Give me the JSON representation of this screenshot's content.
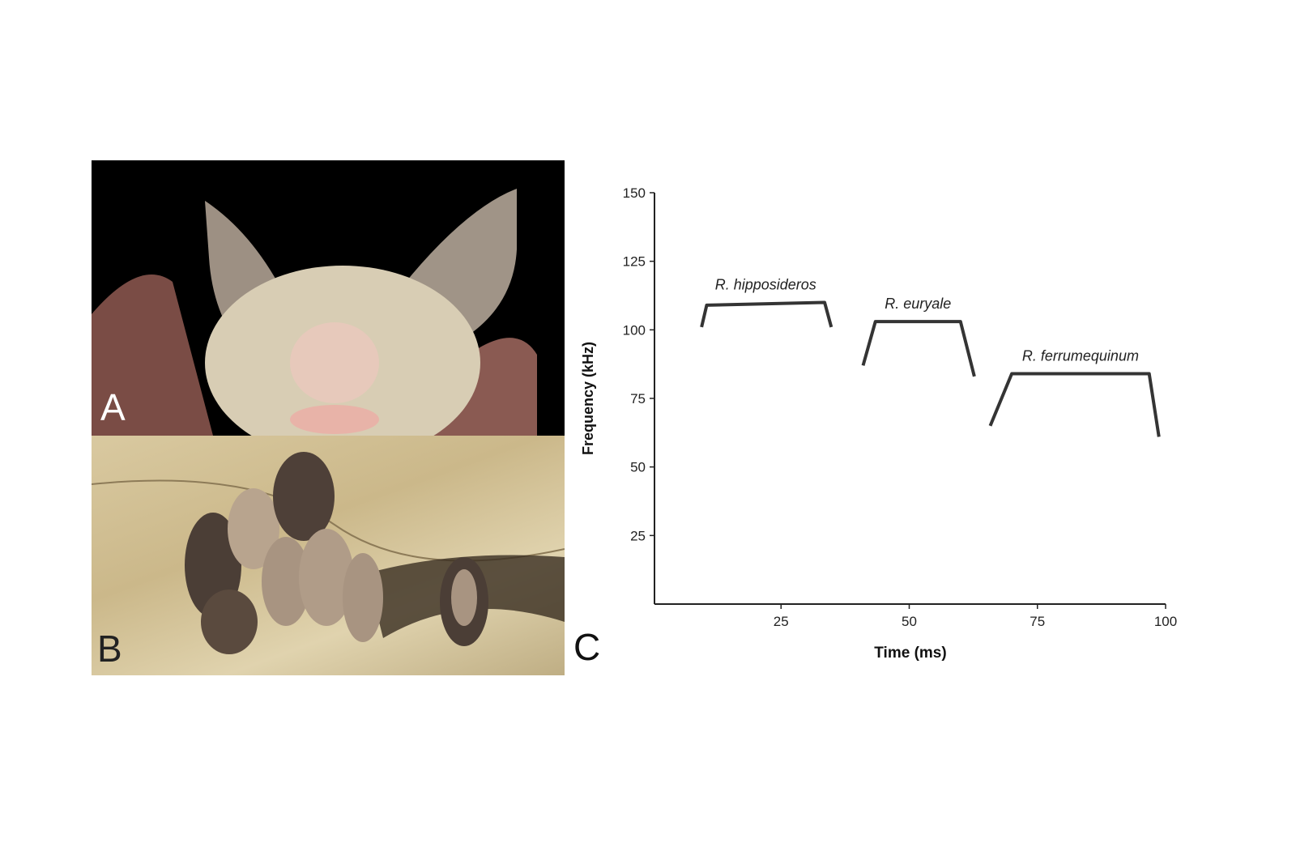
{
  "panels": {
    "a_label": "A",
    "b_label": "B",
    "c_label": "C"
  },
  "colors": {
    "ink": "#111111",
    "photo_a_bg": "#000000",
    "rock": "#d3c295",
    "bat_fur": "#cfc2a4",
    "bat_wing": "#4a3d36"
  },
  "chart_data": {
    "type": "line",
    "title": "",
    "xlabel": "Time (ms)",
    "ylabel": "Frequency (kHz)",
    "xlim": [
      0,
      100
    ],
    "ylim": [
      0,
      150
    ],
    "xticks": [
      25,
      50,
      75,
      100
    ],
    "yticks": [
      25,
      50,
      75,
      100,
      125,
      150
    ],
    "grid": false,
    "series": [
      {
        "name": "R. hipposideros",
        "x": [
          9.5,
          10.5,
          33.5,
          34.8
        ],
        "y": [
          101,
          109,
          110,
          101
        ]
      },
      {
        "name": "R. euryale",
        "x": [
          41,
          43.4,
          60,
          62.7
        ],
        "y": [
          87,
          103,
          103,
          83
        ]
      },
      {
        "name": "R. ferrumequinum",
        "x": [
          65.8,
          70,
          96.8,
          98.7
        ],
        "y": [
          65,
          84,
          84,
          61
        ]
      }
    ]
  }
}
